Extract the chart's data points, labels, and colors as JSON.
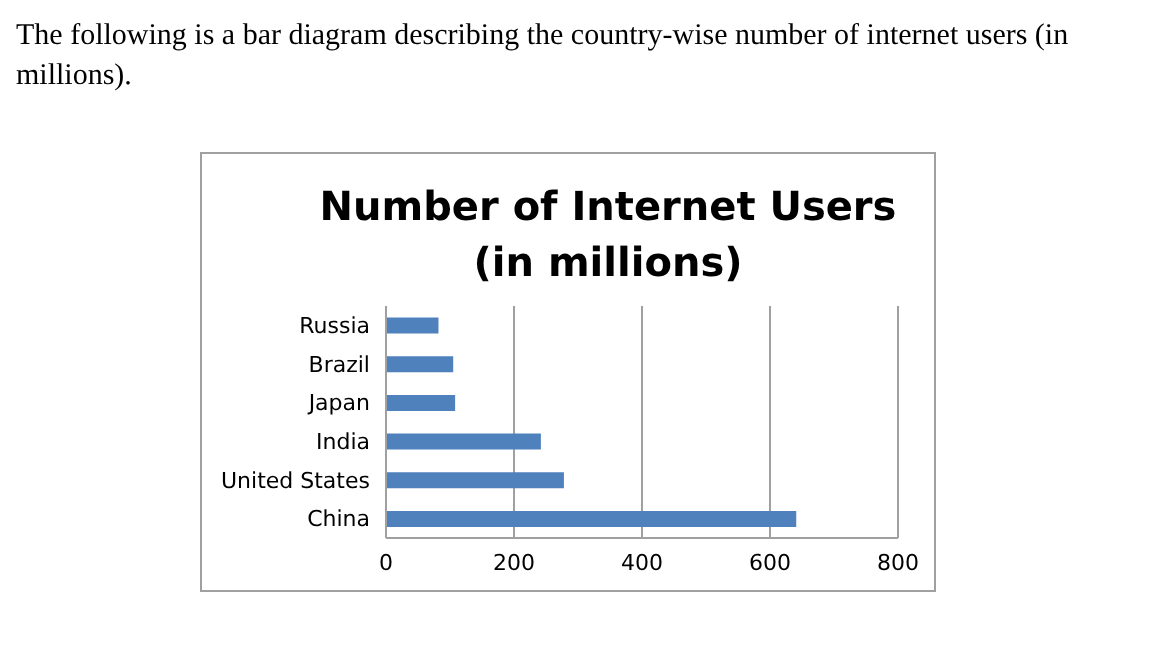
{
  "chart_data": {
    "type": "bar",
    "orientation": "horizontal",
    "title": "Number of Internet Users\n(in millions)",
    "annotations": [
      "The following is a bar diagram describing the country-wise number of internet users (in millions)."
    ],
    "categories": [
      "Russia",
      "Brazil",
      "Japan",
      "India",
      "United States",
      "China"
    ],
    "values": [
      82,
      105,
      108,
      242,
      278,
      641
    ],
    "color": "#4f81bd",
    "xlim": [
      0,
      800
    ],
    "xticks": [
      0,
      200,
      400,
      600,
      800
    ],
    "grid": "x"
  }
}
